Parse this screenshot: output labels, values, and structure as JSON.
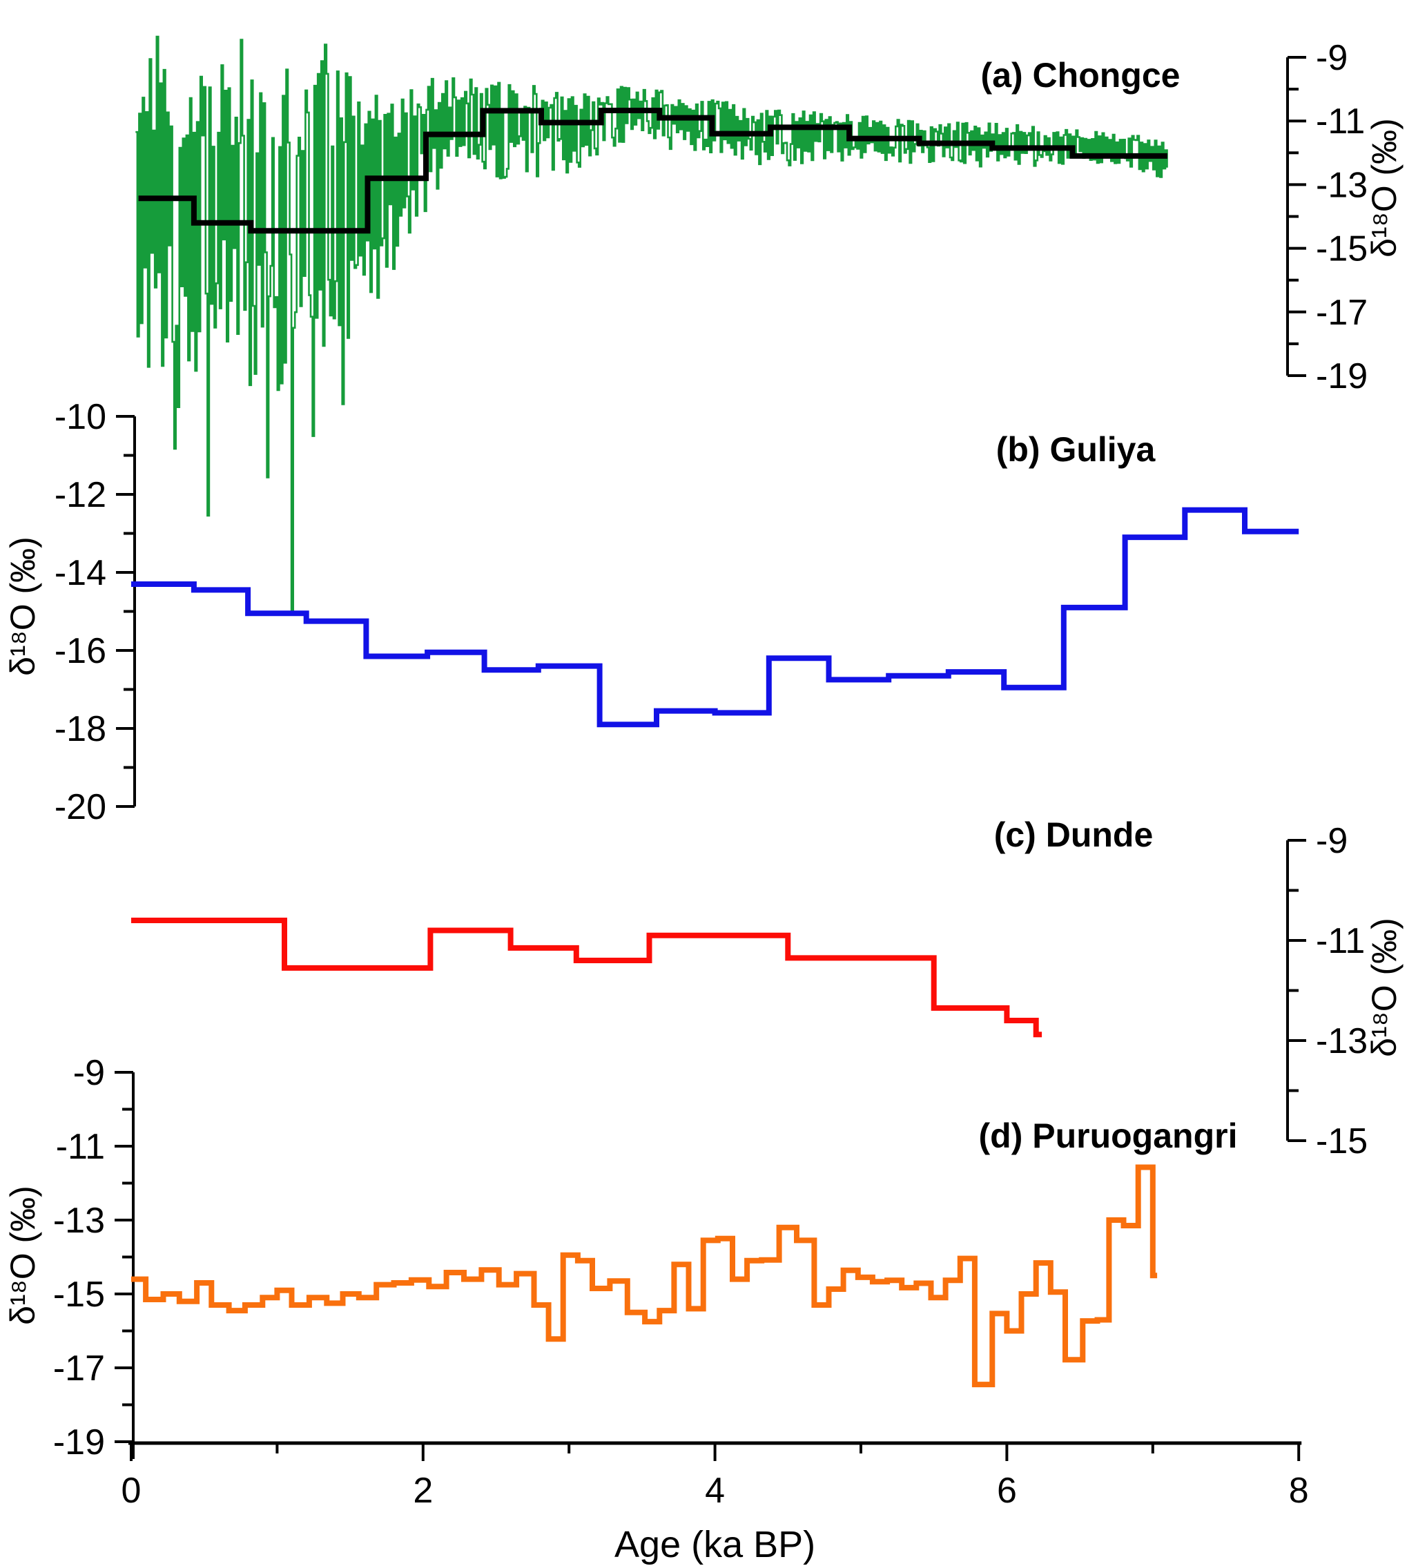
{
  "chart_data": {
    "type": "line",
    "title": "",
    "xlabel": "Age (ka BP)",
    "ylabel": "δ¹⁸O (‰)",
    "x_range": [
      0,
      8
    ],
    "x_ticks": [
      0,
      2,
      4,
      6,
      8
    ],
    "x_minor_ticks": [
      1,
      3,
      5,
      7
    ],
    "grid": false,
    "legend_position": "none",
    "colors": {
      "chongce_annual": "#169c3b",
      "chongce_average": "#000000",
      "guliya": "#1212e6",
      "dunde": "#fc0d07",
      "puruogangri": "#f9700d",
      "axis": "#000000"
    },
    "panels": [
      {
        "id": "a",
        "title": "(a) Chongce",
        "axis_side": "right",
        "y_range": [
          -9,
          -19
        ],
        "y_ticks": [
          -9,
          -11,
          -13,
          -15,
          -17,
          -19
        ],
        "y_minor_ticks": [
          -10,
          -12,
          -14,
          -16,
          -18
        ],
        "series": [
          {
            "name": "chongce-annual",
            "type": "noisy",
            "color_key": "chongce_annual",
            "dt": 0.012,
            "seed": 1337,
            "envelope": [
              [
                0.03,
                -19.5,
                -8.9
              ],
              [
                0.3,
                -20.3,
                -8.7
              ],
              [
                0.55,
                -19.2,
                -8.9
              ],
              [
                0.8,
                -19.8,
                -9.3
              ],
              [
                1.1,
                -20.5,
                -8.9
              ],
              [
                1.35,
                -19.0,
                -9.1
              ],
              [
                1.6,
                -17.3,
                -9.9
              ],
              [
                1.8,
                -15.6,
                -10.2
              ],
              [
                2.0,
                -13.9,
                -9.6
              ],
              [
                2.3,
                -12.6,
                -9.6
              ],
              [
                2.6,
                -12.9,
                -9.8
              ],
              [
                3.0,
                -12.7,
                -10.0
              ],
              [
                3.4,
                -11.7,
                -9.9
              ],
              [
                3.8,
                -12.0,
                -10.1
              ],
              [
                4.2,
                -12.4,
                -10.5
              ],
              [
                4.6,
                -12.4,
                -10.7
              ],
              [
                5.0,
                -12.2,
                -10.8
              ],
              [
                5.5,
                -12.4,
                -11.0
              ],
              [
                6.0,
                -12.5,
                -11.1
              ],
              [
                6.5,
                -12.3,
                -11.3
              ],
              [
                7.0,
                -12.7,
                -11.5
              ],
              [
                7.1,
                -13.0,
                -11.6
              ]
            ],
            "spikes": [
              [
                0.3,
                -21.3
              ],
              [
                0.52,
                -23.4
              ],
              [
                0.93,
                -22.2
              ],
              [
                1.1,
                -26.4
              ],
              [
                1.24,
                -20.9
              ],
              [
                1.45,
                -19.9
              ],
              [
                0.18,
                -8.35
              ],
              [
                0.75,
                -8.45
              ],
              [
                1.33,
                -8.6
              ]
            ]
          },
          {
            "name": "chongce-average",
            "type": "step",
            "color_key": "chongce_average",
            "t": [
              0.05,
              0.43,
              0.82,
              1.62,
              2.02,
              2.41,
              2.81,
              3.22,
              3.62,
              3.98,
              4.38,
              4.92,
              5.4,
              5.9,
              6.45
            ],
            "values": [
              -13.43,
              -14.2,
              -14.45,
              -12.8,
              -11.42,
              -10.68,
              -11.05,
              -10.67,
              -10.9,
              -11.4,
              -11.2,
              -11.55,
              -11.7,
              -11.85,
              -12.1
            ],
            "t_end": 7.1
          }
        ]
      },
      {
        "id": "b",
        "title": "(b) Guliya",
        "axis_side": "left",
        "y_range": [
          -10,
          -20
        ],
        "y_ticks": [
          -10,
          -12,
          -14,
          -16,
          -18,
          -20
        ],
        "y_minor_ticks": [
          -11,
          -13,
          -15,
          -17,
          -19
        ],
        "series": [
          {
            "name": "guliya",
            "type": "step",
            "color_key": "guliya",
            "t": [
              0.0,
              0.43,
              0.8,
              1.2,
              1.61,
              2.03,
              2.42,
              2.79,
              3.21,
              3.6,
              4.0,
              4.37,
              4.78,
              5.19,
              5.6,
              5.98,
              6.39,
              6.81,
              7.22,
              7.63
            ],
            "values": [
              -14.3,
              -14.45,
              -15.05,
              -15.25,
              -16.15,
              -16.05,
              -16.5,
              -16.4,
              -17.9,
              -17.55,
              -17.6,
              -16.2,
              -16.75,
              -16.65,
              -16.55,
              -16.95,
              -14.9,
              -13.1,
              -12.4,
              -12.95
            ],
            "t_end": 8.0
          }
        ]
      },
      {
        "id": "c",
        "title": "(c) Dunde",
        "axis_side": "right",
        "y_range": [
          -9,
          -15
        ],
        "y_ticks": [
          -9,
          -11,
          -13,
          -15
        ],
        "y_minor_ticks": [
          -10,
          -12,
          -14
        ],
        "series": [
          {
            "name": "dunde",
            "type": "step",
            "color_key": "dunde",
            "t": [
              0.0,
              1.05,
              2.05,
              2.6,
              3.05,
              3.55,
              4.5,
              5.5,
              6.0,
              6.2
            ],
            "values": [
              -10.6,
              -11.55,
              -10.8,
              -11.15,
              -11.4,
              -10.9,
              -11.35,
              -12.35,
              -12.6,
              -12.88
            ],
            "t_end": 6.24
          }
        ]
      },
      {
        "id": "d",
        "title": "(d) Puruogangri",
        "axis_side": "left",
        "y_range": [
          -9,
          -19
        ],
        "y_ticks": [
          -9,
          -11,
          -13,
          -15,
          -17,
          -19
        ],
        "y_minor_ticks": [
          -10,
          -12,
          -14,
          -16,
          -18
        ],
        "series": [
          {
            "name": "puruogangri",
            "type": "step",
            "color_key": "puruogangri",
            "t": [
              0.0,
              0.1,
              0.22,
              0.33,
              0.45,
              0.55,
              0.67,
              0.78,
              0.9,
              1.0,
              1.1,
              1.22,
              1.34,
              1.45,
              1.56,
              1.68,
              1.8,
              1.92,
              2.04,
              2.16,
              2.28,
              2.4,
              2.52,
              2.64,
              2.76,
              2.86,
              2.96,
              3.06,
              3.16,
              3.28,
              3.4,
              3.52,
              3.62,
              3.72,
              3.82,
              3.92,
              4.02,
              4.12,
              4.22,
              4.32,
              4.44,
              4.56,
              4.68,
              4.78,
              4.88,
              4.98,
              5.08,
              5.18,
              5.28,
              5.38,
              5.48,
              5.58,
              5.68,
              5.78,
              5.9,
              6.0,
              6.1,
              6.2,
              6.3,
              6.4,
              6.52,
              6.62,
              6.7,
              6.8,
              6.9,
              7.0
            ],
            "values": [
              -14.6,
              -15.15,
              -15.0,
              -15.2,
              -14.7,
              -15.3,
              -15.45,
              -15.3,
              -15.1,
              -14.9,
              -15.3,
              -15.1,
              -15.25,
              -15.0,
              -15.1,
              -14.75,
              -14.7,
              -14.62,
              -14.8,
              -14.42,
              -14.6,
              -14.35,
              -14.75,
              -14.45,
              -15.3,
              -16.22,
              -13.95,
              -14.1,
              -14.85,
              -14.65,
              -15.5,
              -15.75,
              -15.45,
              -14.2,
              -15.4,
              -13.55,
              -13.5,
              -14.6,
              -14.1,
              -14.08,
              -13.2,
              -13.55,
              -15.3,
              -14.87,
              -14.36,
              -14.55,
              -14.67,
              -14.63,
              -14.83,
              -14.71,
              -15.1,
              -14.63,
              -14.04,
              -17.45,
              -15.53,
              -16.0,
              -15.0,
              -14.16,
              -14.95,
              -16.78,
              -15.73,
              -15.7,
              -13.0,
              -13.15,
              -11.57,
              -14.5
            ],
            "t_end": 7.03
          }
        ]
      }
    ]
  }
}
